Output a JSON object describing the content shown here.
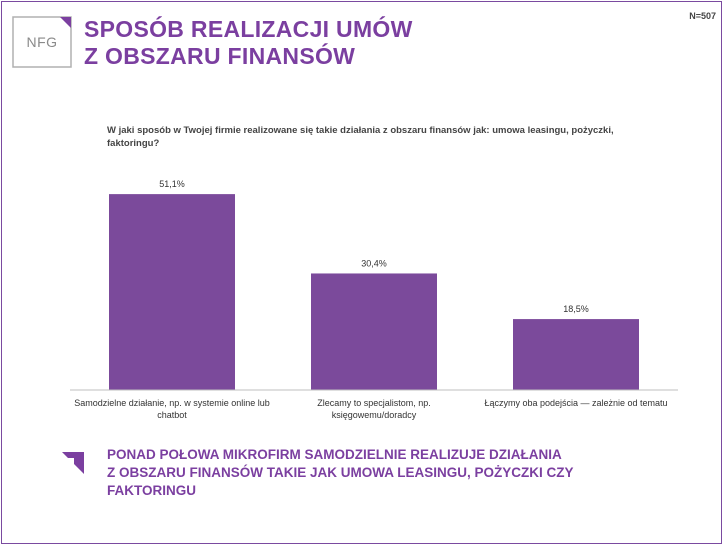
{
  "header": {
    "logo_text": "NFG",
    "title_line1": "SPOSÓB REALIZACJI UMÓW",
    "title_line2": "Z OBSZARU FINANSÓW",
    "sample_size": "N=507"
  },
  "chart_data": {
    "type": "bar",
    "title": "W jaki sposób w Twojej firmie realizowane się takie działania z obszaru finansów jak: umowa leasingu, pożyczki, faktoringu?",
    "categories": [
      [
        "Samodzielne działanie, np. w systemie online lub",
        "chatbot"
      ],
      [
        "Zlecamy to specjalistom, np.",
        "księgowemu/doradcy"
      ],
      [
        "Łączymy oba podejścia — zależnie od tematu"
      ]
    ],
    "values": [
      51.1,
      30.4,
      18.5
    ],
    "value_labels": [
      "51,1%",
      "30,4%",
      "18,5%"
    ],
    "ylim": [
      0,
      60
    ],
    "grid": false,
    "legend": "none",
    "bar_color": "#7b4a9b"
  },
  "summary": {
    "line1": "PONAD POŁOWA MIKROFIRM SAMODZIELNIE REALIZUJE DZIAŁANIA",
    "line2": "Z OBSZARU FINANSÓW TAKIE JAK UMOWA LEASINGU, POŻYCZKI CZY",
    "line3": "FAKTORINGU"
  },
  "colors": {
    "accent": "#7b3fa0",
    "logo_frame": "#b0b0b0"
  }
}
